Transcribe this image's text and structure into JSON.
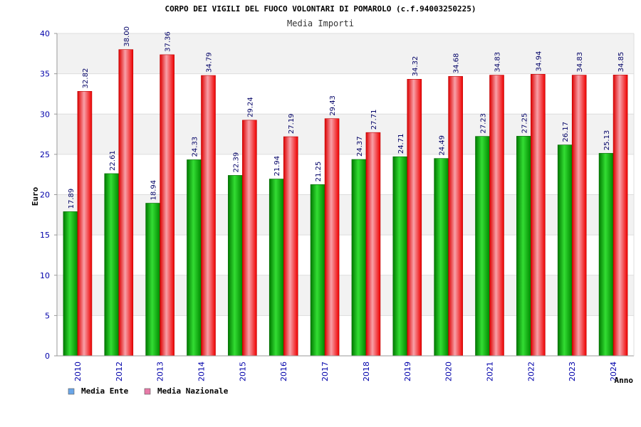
{
  "chart_data": {
    "type": "bar",
    "title": "CORPO DEI VIGILI DEL FUOCO VOLONTARI DI POMAROLO (c.f.94003250225)",
    "subtitle": "Media Importi",
    "xlabel": "Anno",
    "ylabel": "Euro",
    "ylim": [
      0,
      40
    ],
    "yticks": [
      "0",
      "5",
      "10",
      "15",
      "20",
      "25",
      "30",
      "35",
      "40"
    ],
    "grid": true,
    "legend_position": "bottom-left",
    "categories": [
      "2010",
      "2012",
      "2013",
      "2014",
      "2015",
      "2016",
      "2017",
      "2018",
      "2019",
      "2020",
      "2021",
      "2022",
      "2023",
      "2024"
    ],
    "series": [
      {
        "name": "Media Ente",
        "color": "#00aa00",
        "legend_color": "#6aa6e8",
        "values": [
          17.89,
          22.61,
          18.94,
          24.33,
          22.39,
          21.94,
          21.25,
          24.37,
          24.71,
          24.49,
          27.23,
          27.25,
          26.17,
          25.13
        ],
        "labels": [
          "17.89",
          "22.61",
          "18.94",
          "24.33",
          "22.39",
          "21.94",
          "21.25",
          "24.37",
          "24.71",
          "24.49",
          "27.23",
          "27.25",
          "26.17",
          "25.13"
        ]
      },
      {
        "name": "Media Nazionale",
        "color": "#ee1111",
        "legend_color": "#e87aa8",
        "values": [
          32.82,
          38.0,
          37.36,
          34.79,
          29.24,
          27.19,
          29.43,
          27.71,
          34.32,
          34.68,
          34.83,
          34.94,
          34.83,
          34.85
        ],
        "labels": [
          "32.82",
          "38.00",
          "37.36",
          "34.79",
          "29.24",
          "27.19",
          "29.43",
          "27.71",
          "34.32",
          "34.68",
          "34.83",
          "34.94",
          "34.83",
          "34.85"
        ]
      }
    ]
  }
}
